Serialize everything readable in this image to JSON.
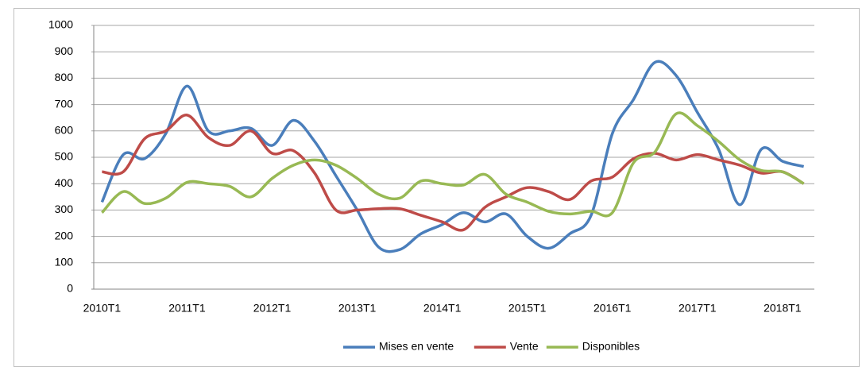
{
  "chart_data": {
    "type": "line",
    "categories": [
      "2010T1",
      null,
      null,
      null,
      "2011T1",
      null,
      null,
      null,
      "2012T1",
      null,
      null,
      null,
      "2013T1",
      null,
      null,
      null,
      "2014T1",
      null,
      null,
      null,
      "2015T1",
      null,
      null,
      null,
      "2016T1",
      null,
      null,
      null,
      "2017T1",
      null,
      null,
      null,
      "2018T1",
      null
    ],
    "series": [
      {
        "name": "Mises en vente",
        "color": "#4a7ebb",
        "values": [
          330,
          510,
          495,
          590,
          770,
          600,
          600,
          610,
          545,
          640,
          560,
          430,
          300,
          160,
          150,
          210,
          245,
          290,
          255,
          285,
          200,
          155,
          210,
          280,
          590,
          720,
          860,
          810,
          670,
          530,
          320,
          530,
          485,
          465
        ]
      },
      {
        "name": "Vente",
        "color": "#be4b48",
        "values": [
          445,
          445,
          570,
          600,
          660,
          575,
          545,
          600,
          515,
          525,
          440,
          300,
          300,
          305,
          305,
          280,
          255,
          225,
          310,
          350,
          385,
          370,
          340,
          410,
          425,
          495,
          515,
          490,
          510,
          490,
          470,
          440,
          445,
          400
        ]
      },
      {
        "name": "Disponibles",
        "color": "#98b954",
        "values": [
          290,
          370,
          325,
          345,
          405,
          400,
          390,
          350,
          420,
          470,
          490,
          470,
          420,
          360,
          345,
          410,
          400,
          395,
          435,
          360,
          330,
          295,
          285,
          295,
          290,
          480,
          520,
          665,
          620,
          560,
          490,
          450,
          445,
          400
        ]
      }
    ],
    "ylim": [
      0,
      1000
    ],
    "yticks": [
      0,
      100,
      200,
      300,
      400,
      500,
      600,
      700,
      800,
      900,
      1000
    ],
    "grid": true,
    "legend": "bottom"
  }
}
